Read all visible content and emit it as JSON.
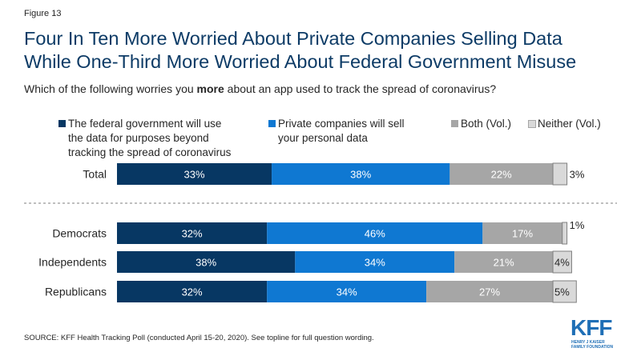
{
  "figure_label": "Figure 13",
  "title_lines": [
    "Four In Ten More Worried About Private Companies Selling Data",
    "While One-Third More Worried About Federal Government Misuse"
  ],
  "subtitle": {
    "before": "Which of the following worries you ",
    "bold": "more",
    "after": " about an app used to track the spread of coronavirus?"
  },
  "legend": [
    {
      "lines": [
        "The federal government will use",
        "the data for purposes beyond",
        "tracking the spread of coronavirus"
      ],
      "color": "#073763"
    },
    {
      "lines": [
        "Private companies will sell",
        "your personal data"
      ],
      "color": "#0f78d2"
    },
    {
      "lines": [
        "Both (Vol.)"
      ],
      "color": "#a6a6a6"
    },
    {
      "lines": [
        "Neither (Vol.)"
      ],
      "color": "#d9d9d9"
    }
  ],
  "chart_data": {
    "type": "bar",
    "orientation": "horizontal",
    "stacked": true,
    "categories": [
      "Total",
      "Democrats",
      "Independents",
      "Republicans"
    ],
    "series": [
      {
        "name": "The federal government will use the data for purposes beyond tracking the spread of coronavirus",
        "values": [
          33,
          32,
          38,
          32
        ],
        "labels": [
          "33%",
          "32%",
          "38%",
          "32%"
        ],
        "color": "#073763"
      },
      {
        "name": "Private companies will sell your personal data",
        "values": [
          38,
          46,
          34,
          34
        ],
        "labels": [
          "38%",
          "46%",
          "34%",
          "34%"
        ],
        "color": "#0f78d2"
      },
      {
        "name": "Both (Vol.)",
        "values": [
          22,
          17,
          21,
          27
        ],
        "labels": [
          "22%",
          "17%",
          "21%",
          "27%"
        ],
        "color": "#a6a6a6"
      },
      {
        "name": "Neither (Vol.)",
        "values": [
          3,
          1,
          4,
          5
        ],
        "labels": [
          "3%",
          "1%",
          "4%",
          "5%"
        ],
        "color": "#d9d9d9"
      }
    ],
    "xlim": [
      0,
      100
    ],
    "separator_after": "Total",
    "legend_position": "top"
  },
  "source": "SOURCE: KFF Health Tracking Poll (conducted April 15-20, 2020). See topline for full question wording.",
  "logo": {
    "text": "KFF",
    "sub_lines": [
      "HENRY J KAISER",
      "FAMILY FOUNDATION"
    ]
  }
}
